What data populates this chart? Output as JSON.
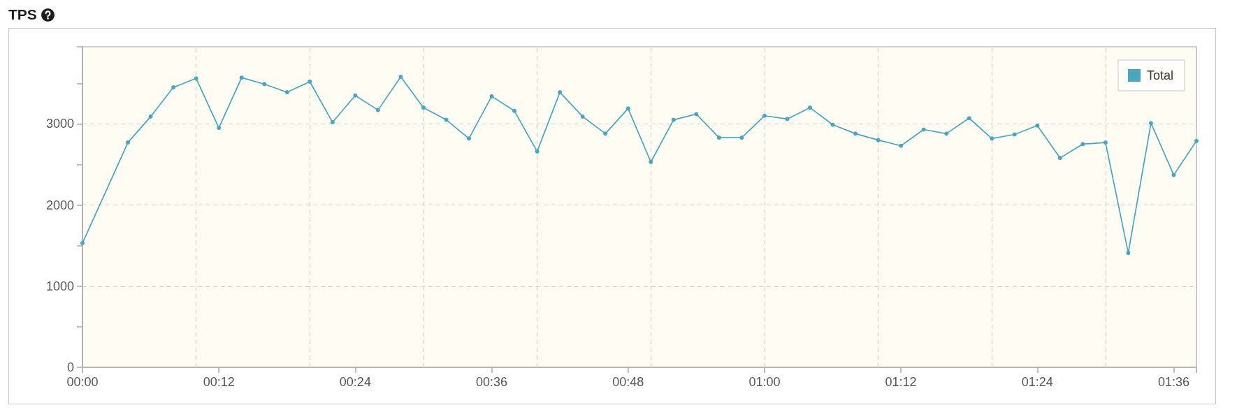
{
  "chart_data": {
    "type": "line",
    "title": "TPS",
    "x": [
      0,
      4,
      6,
      8,
      10,
      12,
      14,
      16,
      18,
      20,
      22,
      24,
      26,
      28,
      30,
      32,
      34,
      36,
      38,
      40,
      42,
      44,
      46,
      48,
      50,
      52,
      54,
      56,
      58,
      60,
      62,
      64,
      66,
      68,
      70,
      72,
      74,
      76,
      78,
      80,
      82,
      84,
      86,
      88,
      90,
      92,
      94,
      96,
      98
    ],
    "series": [
      {
        "name": "Total",
        "color": "#4aa6be",
        "values": [
          1530,
          2770,
          3090,
          3450,
          3560,
          2950,
          3570,
          3490,
          3390,
          3520,
          3020,
          3350,
          3170,
          3580,
          3200,
          3050,
          2820,
          3340,
          3160,
          2660,
          3390,
          3090,
          2880,
          3190,
          2530,
          3050,
          3120,
          2830,
          2830,
          3100,
          3060,
          3200,
          2990,
          2880,
          2800,
          2730,
          2930,
          2880,
          3070,
          2820,
          2870,
          2980,
          2580,
          2750,
          2770,
          1410,
          3010,
          2370,
          2790
        ]
      }
    ],
    "xlim": [
      0,
      98
    ],
    "xticks": [
      {
        "value": 0,
        "label": "00:00"
      },
      {
        "value": 12,
        "label": "00:12"
      },
      {
        "value": 24,
        "label": "00:24"
      },
      {
        "value": 36,
        "label": "00:36"
      },
      {
        "value": 48,
        "label": "00:48"
      },
      {
        "value": 60,
        "label": "01:00"
      },
      {
        "value": 72,
        "label": "01:12"
      },
      {
        "value": 84,
        "label": "01:24"
      },
      {
        "value": 96,
        "label": "01:36"
      },
      {
        "value": 98,
        "label": null
      }
    ],
    "ylim": [
      0,
      3950
    ],
    "yticks": [
      0,
      {
        "value": 500,
        "label": null
      },
      1000,
      {
        "value": 1500,
        "label": null
      },
      2000,
      {
        "value": 2500,
        "label": null
      },
      3000,
      {
        "value": 3500,
        "label": null
      },
      {
        "value": 3950,
        "label": null
      }
    ],
    "grid": "y",
    "legend": "top right",
    "marker": "circle",
    "line_style": "solid",
    "ref_lines": [
      {
        "axis": "x",
        "value": 10,
        "color": "#d0d0d0",
        "line_style": "dashed"
      },
      {
        "axis": "x",
        "value": 20,
        "color": "#d0d0d0",
        "line_style": "dashed"
      },
      {
        "axis": "x",
        "value": 30,
        "color": "#d0d0d0",
        "line_style": "dashed"
      },
      {
        "axis": "x",
        "value": 40,
        "color": "#d0d0d0",
        "line_style": "dashed"
      },
      {
        "axis": "x",
        "value": 50,
        "color": "#d0d0d0",
        "line_style": "dashed"
      },
      {
        "axis": "x",
        "value": 60,
        "color": "#d0d0d0",
        "line_style": "dashed"
      },
      {
        "axis": "x",
        "value": 70,
        "color": "#d0d0d0",
        "line_style": "dashed"
      },
      {
        "axis": "x",
        "value": 80,
        "color": "#d0d0d0",
        "line_style": "dashed"
      },
      {
        "axis": "x",
        "value": 90,
        "color": "#d0d0d0",
        "line_style": "dashed"
      }
    ]
  }
}
